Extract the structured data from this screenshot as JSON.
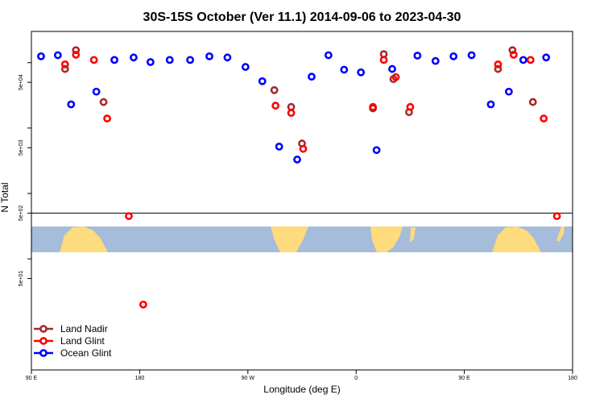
{
  "chart_data": {
    "type": "scatter",
    "title": "30S-15S October (Ver 11.1)   2014-09-06 to 2023-04-30",
    "xlabel": "Longitude (deg E)",
    "ylabel": "N Total",
    "y_scale": "log",
    "xlim": [
      90,
      540
    ],
    "ylim": [
      2,
      300000
    ],
    "x_ticks": [
      {
        "value": 90,
        "label": "90 E"
      },
      {
        "value": 180,
        "label": "180"
      },
      {
        "value": 270,
        "label": "90 W"
      },
      {
        "value": 360,
        "label": "0"
      },
      {
        "value": 450,
        "label": "90 E"
      },
      {
        "value": 540,
        "label": "180"
      }
    ],
    "y_ticks": [
      {
        "value": 50,
        "label": "5e+01"
      },
      {
        "value": 500,
        "label": "5e+02"
      },
      {
        "value": 5000,
        "label": "5e+03"
      },
      {
        "value": 50000,
        "label": "5e+04"
      }
    ],
    "reference_line_y": 500,
    "map_band": {
      "land_color": "#fedb7c",
      "ocean_color": "#a5bcdb"
    },
    "legend_position": "bottom-left",
    "series": [
      {
        "name": "Land Nadir",
        "color": "#a52a2a",
        "points": [
          [
            118,
            80000
          ],
          [
            127,
            155000
          ],
          [
            150,
            25000
          ],
          [
            292,
            38000
          ],
          [
            306,
            21000
          ],
          [
            315,
            5800
          ],
          [
            374,
            20000
          ],
          [
            383,
            135000
          ],
          [
            391,
            56000
          ],
          [
            404,
            17500
          ],
          [
            478,
            80000
          ],
          [
            490,
            155000
          ],
          [
            507,
            25000
          ]
        ]
      },
      {
        "name": "Land Glint",
        "color": "#ff0000",
        "points": [
          [
            118,
            94000
          ],
          [
            127,
            132000
          ],
          [
            142,
            110000
          ],
          [
            153,
            14000
          ],
          [
            171,
            450
          ],
          [
            183,
            20
          ],
          [
            293,
            22000
          ],
          [
            306,
            17000
          ],
          [
            316,
            4800
          ],
          [
            374,
            21000
          ],
          [
            383,
            110000
          ],
          [
            393,
            60000
          ],
          [
            405,
            21000
          ],
          [
            478,
            94000
          ],
          [
            491,
            132000
          ],
          [
            505,
            110000
          ],
          [
            516,
            14000
          ],
          [
            527,
            450
          ]
        ]
      },
      {
        "name": "Ocean Glint",
        "color": "#0000ff",
        "points": [
          [
            98,
            125000
          ],
          [
            112,
            130000
          ],
          [
            123,
            23000
          ],
          [
            144,
            36000
          ],
          [
            159,
            110000
          ],
          [
            175,
            120000
          ],
          [
            189,
            102000
          ],
          [
            205,
            110000
          ],
          [
            222,
            110000
          ],
          [
            238,
            125000
          ],
          [
            253,
            120000
          ],
          [
            268,
            86000
          ],
          [
            282,
            52000
          ],
          [
            296,
            5200
          ],
          [
            311,
            3300
          ],
          [
            323,
            61000
          ],
          [
            337,
            130000
          ],
          [
            350,
            78000
          ],
          [
            364,
            71000
          ],
          [
            377,
            4600
          ],
          [
            390,
            80000
          ],
          [
            411,
            128000
          ],
          [
            426,
            106000
          ],
          [
            441,
            125000
          ],
          [
            456,
            130000
          ],
          [
            472,
            23000
          ],
          [
            487,
            36000
          ],
          [
            499,
            110000
          ],
          [
            518,
            120000
          ]
        ]
      }
    ]
  }
}
